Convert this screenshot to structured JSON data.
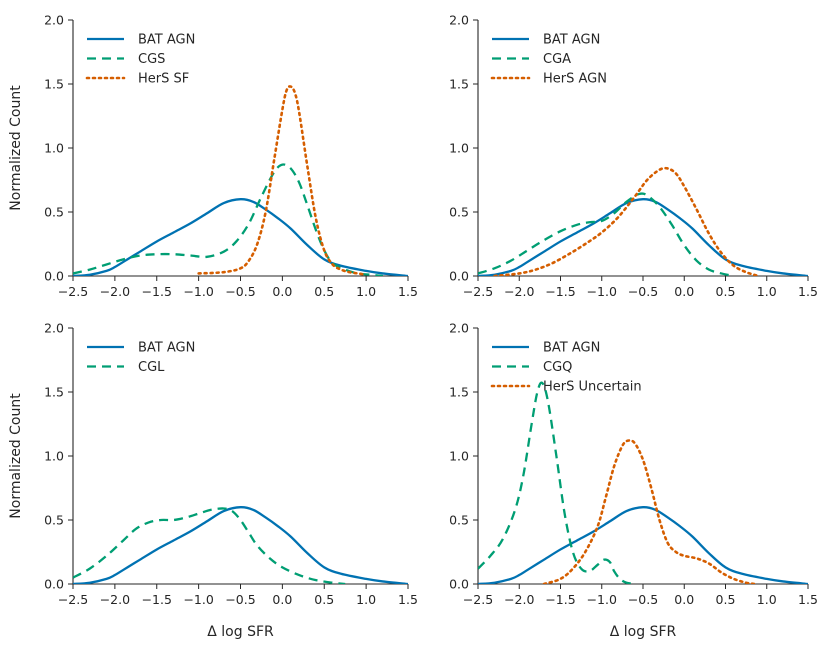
{
  "figure_colors": {
    "bat": "#0072b2",
    "comparison": "#009e73",
    "hers": "#d55e00"
  },
  "chart_data": [
    {
      "type": "line",
      "panel": "top-left",
      "xlabel": "",
      "ylabel": "Normalized Count",
      "xlim": [
        -2.5,
        1.5
      ],
      "ylim": [
        0,
        2.0
      ],
      "x_ticks": [
        -2.5,
        -2.0,
        -1.5,
        -1.0,
        -0.5,
        0.0,
        0.5,
        1.0,
        1.5
      ],
      "x_tick_labels": [
        "−2.5",
        "−2.0",
        "−1.5",
        "−1.0",
        "−0.5",
        "0.0",
        "0.5",
        "1.0",
        "1.5"
      ],
      "y_ticks": [
        0,
        0.5,
        1.0,
        1.5,
        2.0
      ],
      "y_tick_labels": [
        "0.0",
        "0.5",
        "1.0",
        "1.5",
        "2.0"
      ],
      "legend_position": "top-left",
      "series": [
        {
          "name": "BAT AGN",
          "style": "solid",
          "color": "#0072b2",
          "x": [
            -2.5,
            -2.3,
            -2.1,
            -2.0,
            -1.9,
            -1.7,
            -1.5,
            -1.3,
            -1.1,
            -0.9,
            -0.7,
            -0.5,
            -0.35,
            -0.2,
            -0.05,
            0.1,
            0.3,
            0.5,
            0.7,
            1.0,
            1.2,
            1.5
          ],
          "y": [
            0.0,
            0.01,
            0.04,
            0.07,
            0.11,
            0.19,
            0.27,
            0.34,
            0.41,
            0.49,
            0.57,
            0.6,
            0.58,
            0.52,
            0.45,
            0.37,
            0.24,
            0.13,
            0.08,
            0.04,
            0.02,
            0.0
          ]
        },
        {
          "name": "CGS",
          "style": "dashed",
          "color": "#009e73",
          "x": [
            -2.5,
            -2.3,
            -2.1,
            -1.9,
            -1.7,
            -1.5,
            -1.3,
            -1.1,
            -0.9,
            -0.7,
            -0.55,
            -0.4,
            -0.25,
            -0.1,
            0.0,
            0.1,
            0.2,
            0.3,
            0.4,
            0.5,
            0.6,
            0.75,
            0.9,
            1.05,
            1.2
          ],
          "y": [
            0.02,
            0.05,
            0.09,
            0.13,
            0.16,
            0.17,
            0.17,
            0.16,
            0.15,
            0.19,
            0.27,
            0.41,
            0.62,
            0.81,
            0.87,
            0.84,
            0.73,
            0.55,
            0.36,
            0.2,
            0.1,
            0.05,
            0.02,
            0.01,
            0.0
          ]
        },
        {
          "name": "HerS SF",
          "style": "dotted",
          "color": "#d55e00",
          "x": [
            -1.0,
            -0.7,
            -0.5,
            -0.4,
            -0.3,
            -0.2,
            -0.1,
            0.0,
            0.05,
            0.1,
            0.15,
            0.2,
            0.3,
            0.4,
            0.5,
            0.6,
            0.7,
            0.8,
            0.9,
            1.0
          ],
          "y": [
            0.02,
            0.03,
            0.06,
            0.12,
            0.25,
            0.5,
            0.9,
            1.3,
            1.45,
            1.48,
            1.43,
            1.28,
            0.85,
            0.45,
            0.2,
            0.09,
            0.05,
            0.03,
            0.02,
            0.01
          ]
        }
      ]
    },
    {
      "type": "line",
      "panel": "top-right",
      "xlabel": "",
      "ylabel": "",
      "xlim": [
        -2.5,
        1.5
      ],
      "ylim": [
        0,
        2.0
      ],
      "x_ticks": [
        -2.5,
        -2.0,
        -1.5,
        -1.0,
        -0.5,
        0.0,
        0.5,
        1.0,
        1.5
      ],
      "x_tick_labels": [
        "−2.5",
        "−2.0",
        "−1.5",
        "−1.0",
        "−0.5",
        "0.0",
        "0.5",
        "1.0",
        "1.5"
      ],
      "y_ticks": [
        0,
        0.5,
        1.0,
        1.5,
        2.0
      ],
      "y_tick_labels": [
        "0.0",
        "0.5",
        "1.0",
        "1.5",
        "2.0"
      ],
      "legend_position": "top-left",
      "series": [
        {
          "name": "BAT AGN",
          "style": "solid",
          "color": "#0072b2",
          "x": [
            -2.5,
            -2.3,
            -2.1,
            -2.0,
            -1.9,
            -1.7,
            -1.5,
            -1.3,
            -1.1,
            -0.9,
            -0.7,
            -0.5,
            -0.35,
            -0.2,
            -0.05,
            0.1,
            0.3,
            0.5,
            0.7,
            1.0,
            1.2,
            1.5
          ],
          "y": [
            0.0,
            0.01,
            0.04,
            0.07,
            0.11,
            0.19,
            0.27,
            0.34,
            0.41,
            0.49,
            0.57,
            0.6,
            0.58,
            0.52,
            0.45,
            0.37,
            0.24,
            0.13,
            0.08,
            0.04,
            0.02,
            0.0
          ]
        },
        {
          "name": "CGA",
          "style": "dashed",
          "color": "#009e73",
          "x": [
            -2.5,
            -2.3,
            -2.1,
            -1.9,
            -1.7,
            -1.5,
            -1.3,
            -1.15,
            -1.0,
            -0.85,
            -0.7,
            -0.55,
            -0.45,
            -0.3,
            -0.15,
            0.0,
            0.15,
            0.3,
            0.45,
            0.6
          ],
          "y": [
            0.02,
            0.06,
            0.12,
            0.2,
            0.28,
            0.35,
            0.4,
            0.42,
            0.43,
            0.49,
            0.58,
            0.64,
            0.63,
            0.54,
            0.4,
            0.24,
            0.12,
            0.05,
            0.02,
            0.0
          ]
        },
        {
          "name": "HerS AGN",
          "style": "dotted",
          "color": "#d55e00",
          "x": [
            -2.3,
            -2.0,
            -1.8,
            -1.6,
            -1.4,
            -1.2,
            -1.0,
            -0.8,
            -0.6,
            -0.45,
            -0.3,
            -0.2,
            -0.1,
            0.0,
            0.15,
            0.3,
            0.45,
            0.6,
            0.75,
            0.9
          ],
          "y": [
            0.0,
            0.02,
            0.05,
            0.1,
            0.17,
            0.25,
            0.34,
            0.46,
            0.62,
            0.75,
            0.83,
            0.84,
            0.8,
            0.7,
            0.52,
            0.33,
            0.18,
            0.08,
            0.03,
            0.0
          ]
        }
      ]
    },
    {
      "type": "line",
      "panel": "bottom-left",
      "xlabel": "Δ log SFR",
      "ylabel": "Normalized Count",
      "xlim": [
        -2.5,
        1.5
      ],
      "ylim": [
        0,
        2.0
      ],
      "x_ticks": [
        -2.5,
        -2.0,
        -1.5,
        -1.0,
        -0.5,
        0.0,
        0.5,
        1.0,
        1.5
      ],
      "x_tick_labels": [
        "−2.5",
        "−2.0",
        "−1.5",
        "−1.0",
        "−0.5",
        "0.0",
        "0.5",
        "1.0",
        "1.5"
      ],
      "y_ticks": [
        0,
        0.5,
        1.0,
        1.5,
        2.0
      ],
      "y_tick_labels": [
        "0.0",
        "0.5",
        "1.0",
        "1.5",
        "2.0"
      ],
      "legend_position": "top-left",
      "series": [
        {
          "name": "BAT AGN",
          "style": "solid",
          "color": "#0072b2",
          "x": [
            -2.5,
            -2.3,
            -2.1,
            -2.0,
            -1.9,
            -1.7,
            -1.5,
            -1.3,
            -1.1,
            -0.9,
            -0.7,
            -0.5,
            -0.35,
            -0.2,
            -0.05,
            0.1,
            0.3,
            0.5,
            0.7,
            1.0,
            1.2,
            1.5
          ],
          "y": [
            0.0,
            0.01,
            0.04,
            0.07,
            0.11,
            0.19,
            0.27,
            0.34,
            0.41,
            0.49,
            0.57,
            0.6,
            0.58,
            0.52,
            0.45,
            0.37,
            0.24,
            0.13,
            0.08,
            0.04,
            0.02,
            0.0
          ]
        },
        {
          "name": "CGL",
          "style": "dashed",
          "color": "#009e73",
          "x": [
            -2.5,
            -2.3,
            -2.1,
            -1.9,
            -1.75,
            -1.6,
            -1.45,
            -1.3,
            -1.15,
            -1.0,
            -0.85,
            -0.7,
            -0.6,
            -0.5,
            -0.4,
            -0.3,
            -0.15,
            0.0,
            0.2,
            0.4,
            0.6,
            0.75
          ],
          "y": [
            0.05,
            0.12,
            0.22,
            0.34,
            0.43,
            0.48,
            0.5,
            0.5,
            0.52,
            0.55,
            0.58,
            0.59,
            0.57,
            0.5,
            0.4,
            0.3,
            0.2,
            0.13,
            0.07,
            0.03,
            0.01,
            0.0
          ]
        }
      ]
    },
    {
      "type": "line",
      "panel": "bottom-right",
      "xlabel": "Δ log SFR",
      "ylabel": "",
      "xlim": [
        -2.5,
        1.5
      ],
      "ylim": [
        0,
        2.0
      ],
      "x_ticks": [
        -2.5,
        -2.0,
        -1.5,
        -1.0,
        -0.5,
        0.0,
        0.5,
        1.0,
        1.5
      ],
      "x_tick_labels": [
        "−2.5",
        "−2.0",
        "−1.5",
        "−1.0",
        "−0.5",
        "0.0",
        "0.5",
        "1.0",
        "1.5"
      ],
      "y_ticks": [
        0,
        0.5,
        1.0,
        1.5,
        2.0
      ],
      "y_tick_labels": [
        "0.0",
        "0.5",
        "1.0",
        "1.5",
        "2.0"
      ],
      "legend_position": "top-left",
      "series": [
        {
          "name": "BAT AGN",
          "style": "solid",
          "color": "#0072b2",
          "x": [
            -2.5,
            -2.3,
            -2.1,
            -2.0,
            -1.9,
            -1.7,
            -1.5,
            -1.3,
            -1.1,
            -0.9,
            -0.7,
            -0.5,
            -0.35,
            -0.2,
            -0.05,
            0.1,
            0.3,
            0.5,
            0.7,
            1.0,
            1.2,
            1.5
          ],
          "y": [
            0.0,
            0.01,
            0.04,
            0.07,
            0.11,
            0.19,
            0.27,
            0.34,
            0.41,
            0.49,
            0.57,
            0.6,
            0.58,
            0.52,
            0.45,
            0.37,
            0.24,
            0.13,
            0.08,
            0.04,
            0.02,
            0.0
          ]
        },
        {
          "name": "CGQ",
          "style": "dashed",
          "color": "#009e73",
          "x": [
            -2.5,
            -2.35,
            -2.2,
            -2.05,
            -1.95,
            -1.85,
            -1.78,
            -1.72,
            -1.65,
            -1.55,
            -1.45,
            -1.35,
            -1.25,
            -1.15,
            -1.05,
            -0.97,
            -0.9,
            -0.85,
            -0.78,
            -0.7,
            -0.6
          ],
          "y": [
            0.12,
            0.22,
            0.35,
            0.58,
            0.85,
            1.25,
            1.5,
            1.57,
            1.42,
            1.0,
            0.55,
            0.25,
            0.12,
            0.1,
            0.15,
            0.19,
            0.17,
            0.1,
            0.04,
            0.01,
            0.0
          ]
        },
        {
          "name": "HerS Uncertain",
          "style": "dotted",
          "color": "#d55e00",
          "x": [
            -1.7,
            -1.5,
            -1.35,
            -1.2,
            -1.05,
            -0.95,
            -0.85,
            -0.75,
            -0.68,
            -0.6,
            -0.5,
            -0.4,
            -0.3,
            -0.2,
            -0.1,
            0.0,
            0.15,
            0.3,
            0.45,
            0.6,
            0.75,
            0.85
          ],
          "y": [
            0.0,
            0.04,
            0.12,
            0.25,
            0.45,
            0.68,
            0.92,
            1.08,
            1.12,
            1.1,
            0.97,
            0.75,
            0.5,
            0.32,
            0.25,
            0.22,
            0.2,
            0.16,
            0.09,
            0.04,
            0.01,
            0.0
          ]
        }
      ]
    }
  ]
}
